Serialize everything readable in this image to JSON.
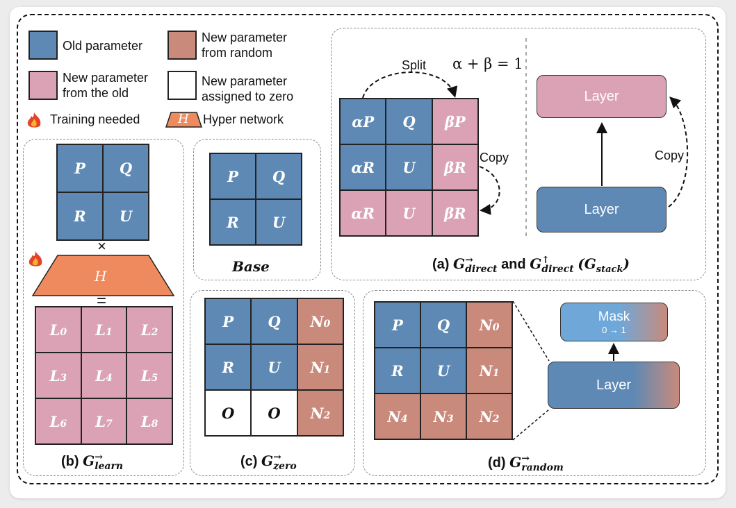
{
  "legend": {
    "old_parameter": "Old parameter",
    "new_from_random": "New parameter\nfrom random",
    "new_from_old": "New parameter\nfrom the old",
    "new_zero": "New parameter\nassigned to zero",
    "training_needed": "Training needed",
    "hyper_network": "Hyper network",
    "hyper_symbol": "H"
  },
  "colors": {
    "old": "#5e89b4",
    "new_from_old": "#dba2b5",
    "new_random": "#c98a7c",
    "zero": "#ffffff",
    "hyper": "#ee8a5e",
    "mask": "#6fa8d8"
  },
  "panel_b": {
    "top_matrix": [
      "P",
      "Q",
      "R",
      "U"
    ],
    "times": "×",
    "hyper_label": "H",
    "equals": "=",
    "bottom_base": "L",
    "bottom_subs": [
      "0",
      "1",
      "2",
      "3",
      "4",
      "5",
      "6",
      "7",
      "8"
    ],
    "caption_prefix": "(b)",
    "caption_math": "G",
    "caption_sub": "learn",
    "caption_sup": "→"
  },
  "base": {
    "matrix": [
      "P",
      "Q",
      "R",
      "U"
    ],
    "caption": "Base"
  },
  "panel_a": {
    "split_label": "Split",
    "equation": "α + β = 1",
    "copy_label": "Copy",
    "matrix": [
      {
        "t": "αP",
        "c": "old"
      },
      {
        "t": "Q",
        "c": "old"
      },
      {
        "t": "βP",
        "c": "oldm"
      },
      {
        "t": "αR",
        "c": "old"
      },
      {
        "t": "U",
        "c": "old"
      },
      {
        "t": "βR",
        "c": "oldm"
      },
      {
        "t": "αR",
        "c": "oldm"
      },
      {
        "t": "U",
        "c": "oldm"
      },
      {
        "t": "βR",
        "c": "oldm"
      }
    ],
    "layer_top": "Layer",
    "layer_bottom": "Layer",
    "copy_label_right": "Copy",
    "caption_prefix": "(a)",
    "caption_g1": "G",
    "caption_g1_sub": "direct",
    "caption_g1_sup": "→",
    "caption_and": "and",
    "caption_g2": "G",
    "caption_g2_sub": "direct",
    "caption_g2_sup": "↑",
    "caption_g3": "(G",
    "caption_g3_sub": "stack",
    "caption_g3_close": ")"
  },
  "panel_c": {
    "matrix": [
      {
        "t": "P",
        "c": "old"
      },
      {
        "t": "Q",
        "c": "old"
      },
      {
        "t": "N",
        "s": "0",
        "c": "rnd"
      },
      {
        "t": "R",
        "c": "old"
      },
      {
        "t": "U",
        "c": "old"
      },
      {
        "t": "N",
        "s": "1",
        "c": "rnd"
      },
      {
        "t": "O",
        "c": "zero"
      },
      {
        "t": "O",
        "c": "zero"
      },
      {
        "t": "N",
        "s": "2",
        "c": "rnd"
      }
    ],
    "caption_prefix": "(c)",
    "caption_math": "G",
    "caption_sub": "zero",
    "caption_sup": "→"
  },
  "panel_d": {
    "matrix": [
      {
        "t": "P",
        "c": "old"
      },
      {
        "t": "Q",
        "c": "old"
      },
      {
        "t": "N",
        "s": "0",
        "c": "rnd"
      },
      {
        "t": "R",
        "c": "old"
      },
      {
        "t": "U",
        "c": "old"
      },
      {
        "t": "N",
        "s": "1",
        "c": "rnd"
      },
      {
        "t": "N",
        "s": "4",
        "c": "rnd"
      },
      {
        "t": "N",
        "s": "3",
        "c": "rnd"
      },
      {
        "t": "N",
        "s": "2",
        "c": "rnd"
      }
    ],
    "mask_label": "Mask",
    "mask_range": "0 → 1",
    "layer_label": "Layer",
    "caption_prefix": "(d)",
    "caption_math": "G",
    "caption_sub": "random",
    "caption_sup": "→"
  }
}
